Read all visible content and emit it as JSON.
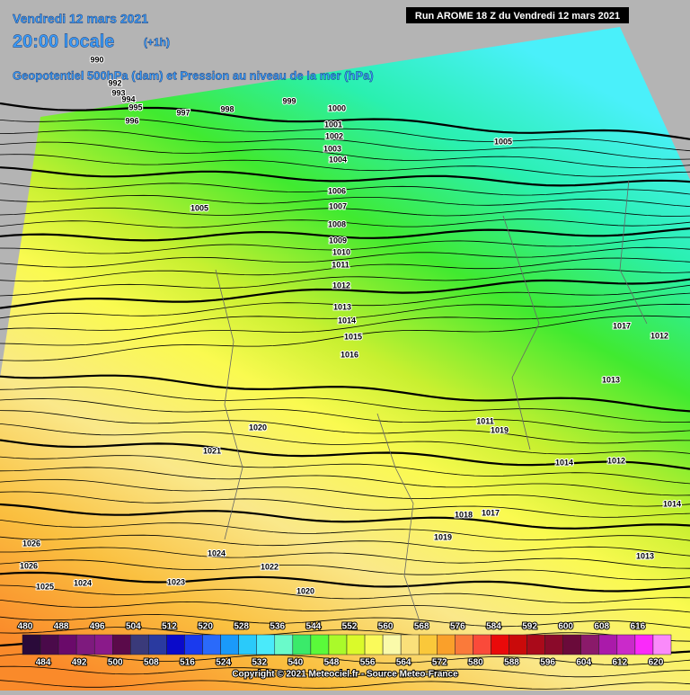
{
  "header": {
    "date": "Vendredi 12 mars 2021",
    "time": "20:00 locale",
    "offset": "(+1h)",
    "subtitle": "Geopotentiel 500hPa (dam) et Pression au niveau de la mer (hPa)",
    "run": "Run AROME 18 Z du Vendredi 12 mars 2021"
  },
  "isobar_labels": [
    990,
    992,
    993,
    994,
    995,
    996,
    997,
    998,
    999,
    1000,
    1001,
    1002,
    1003,
    1004,
    1005,
    1005,
    1006,
    1007,
    1008,
    1009,
    1010,
    1011,
    1012,
    1013,
    1014,
    1015,
    1016,
    1020,
    1021,
    1024,
    1024,
    1025,
    1026,
    1026,
    1023,
    1022,
    1020,
    1018,
    1017,
    1019,
    1014,
    1012,
    1014,
    1013,
    1013,
    1012,
    1017,
    1019,
    1011
  ],
  "scale": {
    "values": [
      480,
      484,
      488,
      492,
      496,
      500,
      504,
      508,
      512,
      516,
      520,
      524,
      528,
      532,
      536,
      540,
      544,
      548,
      552,
      556,
      560,
      564,
      568,
      572,
      576,
      580,
      584,
      588,
      592,
      596,
      600,
      604,
      608,
      612,
      616,
      620
    ],
    "colors": [
      "#2a0a3a",
      "#4a0a4a",
      "#6a0a6a",
      "#7e1a7e",
      "#8a1a8a",
      "#5a0a4a",
      "#3a3a7a",
      "#2a3aa0",
      "#0a0aca",
      "#1a3aee",
      "#2a6afa",
      "#1a9afa",
      "#2acafa",
      "#4aeafa",
      "#6afaca",
      "#3aea6a",
      "#5afa3a",
      "#aafa2a",
      "#dafa2a",
      "#fafa5a",
      "#fafaaa",
      "#fae07a",
      "#fac83a",
      "#faa02a",
      "#fa7a3a",
      "#fa4a3a",
      "#ea0a0a",
      "#ca0a0a",
      "#aa0a1a",
      "#8a0a2a",
      "#6a0a3a",
      "#8a1a6a",
      "#aa1aaa",
      "#ca2aca",
      "#fa2afa",
      "#fa8afa"
    ]
  },
  "copyright": "Copyright © 2021 Meteociel.fr - Source Meteo-France"
}
